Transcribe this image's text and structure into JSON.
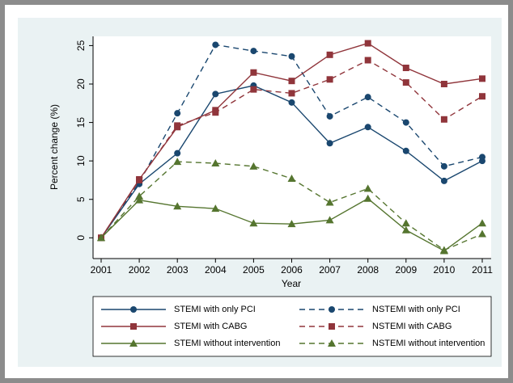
{
  "chart_data": {
    "type": "line",
    "x_label": "Year",
    "y_label": "Percent change (%)",
    "categories": [
      "2001",
      "2002",
      "2003",
      "2004",
      "2005",
      "2006",
      "2007",
      "2008",
      "2009",
      "2010",
      "2011"
    ],
    "ylim": [
      -2.7,
      26.2
    ],
    "yticks": [
      0,
      5,
      10,
      15,
      20,
      25
    ],
    "grid": false,
    "legend_position": "bottom",
    "series": [
      {
        "name": "STEMI with only PCI",
        "color": "#1a476f",
        "dash": "solid",
        "marker": "circle",
        "values": [
          0,
          7.0,
          11.0,
          18.7,
          19.8,
          17.6,
          12.3,
          14.4,
          11.3,
          7.4,
          10.0
        ]
      },
      {
        "name": "NSTEMI with only PCI",
        "color": "#1a476f",
        "dash": "dashed",
        "marker": "circle",
        "values": [
          0,
          7.2,
          16.2,
          25.1,
          24.3,
          23.6,
          15.8,
          18.3,
          15.0,
          9.3,
          10.5
        ]
      },
      {
        "name": "STEMI with CABG",
        "color": "#90353b",
        "dash": "solid",
        "marker": "square",
        "values": [
          0,
          7.6,
          14.4,
          16.6,
          21.5,
          20.4,
          23.8,
          25.3,
          22.1,
          20.0,
          20.7
        ]
      },
      {
        "name": "NSTEMI with CABG",
        "color": "#90353b",
        "dash": "dashed",
        "marker": "square",
        "values": [
          0,
          7.5,
          14.6,
          16.3,
          19.3,
          18.8,
          20.6,
          23.1,
          20.2,
          15.4,
          18.4
        ]
      },
      {
        "name": "STEMI without intervention",
        "color": "#55752f",
        "dash": "solid",
        "marker": "triangle",
        "values": [
          0,
          4.9,
          4.1,
          3.8,
          1.9,
          1.8,
          2.3,
          5.1,
          1.0,
          -1.7,
          1.9
        ]
      },
      {
        "name": "NSTEMI without intervention",
        "color": "#55752f",
        "dash": "dashed",
        "marker": "triangle",
        "values": [
          0,
          5.4,
          9.9,
          9.7,
          9.3,
          7.7,
          4.6,
          6.4,
          1.9,
          -1.6,
          0.5
        ]
      }
    ]
  }
}
